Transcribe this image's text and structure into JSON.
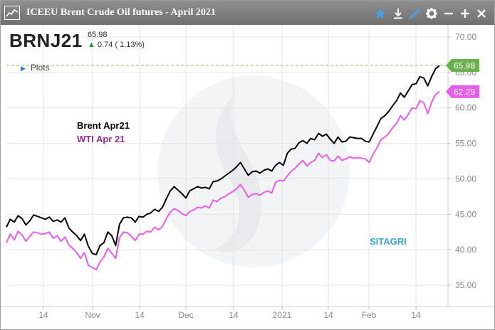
{
  "window": {
    "title": "ICEEU Brent Crude Oil futures - April 2021",
    "toolbar_icons": [
      "star-icon",
      "download-icon",
      "pencil-icon",
      "gear-icon",
      "minimize-icon",
      "maximize-icon",
      "close-icon"
    ],
    "accent_color": "#4a9fe0"
  },
  "header": {
    "ticker": "BRNJ21",
    "last_price": "65.98",
    "change": "0.74 ( 1.13%)",
    "change_direction": "up",
    "plots_label": "Plots"
  },
  "chart_data": {
    "type": "line",
    "series": [
      {
        "name": "Brent Apr21",
        "color": "#000000",
        "last_value_label": "65.98",
        "label_color": "#6ab04c",
        "values": [
          43.2,
          44.3,
          43.9,
          44.8,
          44.4,
          43.5,
          44.1,
          44.9,
          44.7,
          44.5,
          44.3,
          44.6,
          44.0,
          44.2,
          43.9,
          44.5,
          43.1,
          42.5,
          42.0,
          41.3,
          42.2,
          40.5,
          39.5,
          39.3,
          40.6,
          41.0,
          42.5,
          42.0,
          40.6,
          43.6,
          44.5,
          44.6,
          44.5,
          43.9,
          44.7,
          44.6,
          45.0,
          45.2,
          45.7,
          45.4,
          46.0,
          47.2,
          48.3,
          48.9,
          48.4,
          47.9,
          47.3,
          48.3,
          48.6,
          48.9,
          48.7,
          48.8,
          48.6,
          49.6,
          49.7,
          50.0,
          50.4,
          50.8,
          51.2,
          51.7,
          52.3,
          51.4,
          50.5,
          51.0,
          51.1,
          50.8,
          51.2,
          51.4,
          51.1,
          51.9,
          52.3,
          51.9,
          53.6,
          54.2,
          54.3,
          55.1,
          55.4,
          55.0,
          55.7,
          55.5,
          56.4,
          56.0,
          56.3,
          55.6,
          55.0,
          55.9,
          55.2,
          55.3,
          55.9,
          55.8,
          55.7,
          55.7,
          55.3,
          55.2,
          56.3,
          57.4,
          58.5,
          58.9,
          59.5,
          60.3,
          61.0,
          62.1,
          61.5,
          62.4,
          63.3,
          63.4,
          64.4,
          64.2,
          63.1,
          64.4,
          65.5,
          65.98
        ]
      },
      {
        "name": "WTI Apr 21",
        "color": "#e85de8",
        "last_value_label": "62.29",
        "label_color": "#e85de8",
        "values": [
          41.0,
          42.2,
          41.4,
          42.6,
          42.1,
          41.2,
          41.9,
          42.5,
          42.4,
          42.2,
          42.3,
          42.5,
          41.6,
          42.0,
          41.2,
          41.8,
          40.7,
          40.2,
          39.6,
          38.8,
          39.6,
          37.8,
          37.5,
          37.2,
          38.3,
          39.0,
          40.2,
          39.5,
          38.8,
          41.7,
          42.5,
          42.4,
          41.9,
          41.3,
          42.2,
          42.2,
          42.6,
          42.5,
          43.2,
          42.8,
          43.3,
          44.4,
          45.3,
          45.8,
          45.5,
          45.1,
          44.8,
          45.4,
          45.6,
          46.0,
          45.9,
          46.2,
          45.9,
          47.0,
          46.8,
          47.3,
          47.5,
          47.9,
          48.2,
          48.6,
          49.2,
          48.4,
          47.4,
          47.8,
          47.9,
          47.7,
          48.1,
          48.3,
          48.0,
          49.5,
          49.8,
          49.7,
          50.4,
          51.1,
          51.5,
          52.1,
          52.6,
          51.8,
          52.3,
          52.6,
          53.6,
          53.0,
          53.4,
          52.6,
          52.5,
          53.2,
          52.6,
          52.8,
          53.1,
          52.9,
          53.0,
          52.9,
          52.8,
          52.3,
          53.5,
          54.4,
          55.5,
          55.9,
          56.4,
          57.2,
          57.8,
          58.9,
          58.3,
          59.1,
          60.0,
          59.9,
          61.0,
          60.7,
          59.2,
          60.8,
          61.9,
          62.29
        ]
      }
    ],
    "x_tick_labels": [
      "14",
      "Nov",
      "14",
      "Dec",
      "14",
      "2021",
      "14",
      "Feb",
      "14"
    ],
    "y_ticks": [
      "35.00",
      "40.00",
      "45.00",
      "50.00",
      "55.00",
      "60.00",
      "65.00",
      "70.00"
    ],
    "ylim": [
      32.0,
      71.7
    ],
    "grid": true,
    "reference_line": {
      "value": 65.98,
      "style": "dashed",
      "color": "#6ab04c"
    },
    "annotations": [
      {
        "text": "Brent Apr21",
        "color": "#000000"
      },
      {
        "text": "WTI Apr 21",
        "color": "#9b2c9b"
      },
      {
        "text": "SITAGRI",
        "color": "#3aa5d8"
      }
    ]
  }
}
